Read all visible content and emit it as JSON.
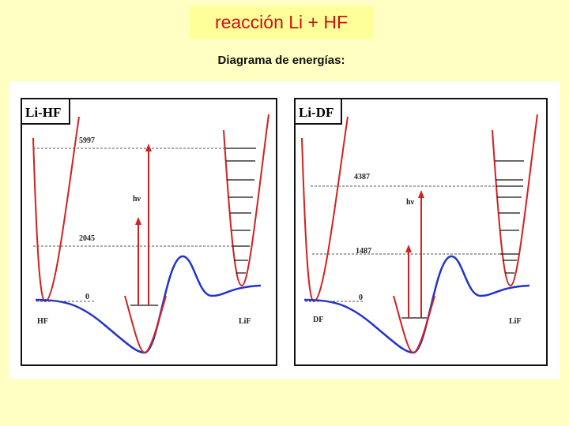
{
  "header": {
    "title": "reacción Li + HF",
    "subtitle": "Diagrama de energías:"
  },
  "panels": [
    {
      "label": "Li-HF",
      "upper_energy": 5997,
      "photon": "hν",
      "lower_energy": 2045,
      "zero": 0,
      "left_molecule": "HF",
      "right_molecule": "LiF"
    },
    {
      "label": "Li-DF",
      "upper_energy": 4387,
      "photon": "hν",
      "lower_energy": 1487,
      "zero": 0,
      "left_molecule": "DF",
      "right_molecule": "LiF"
    }
  ]
}
